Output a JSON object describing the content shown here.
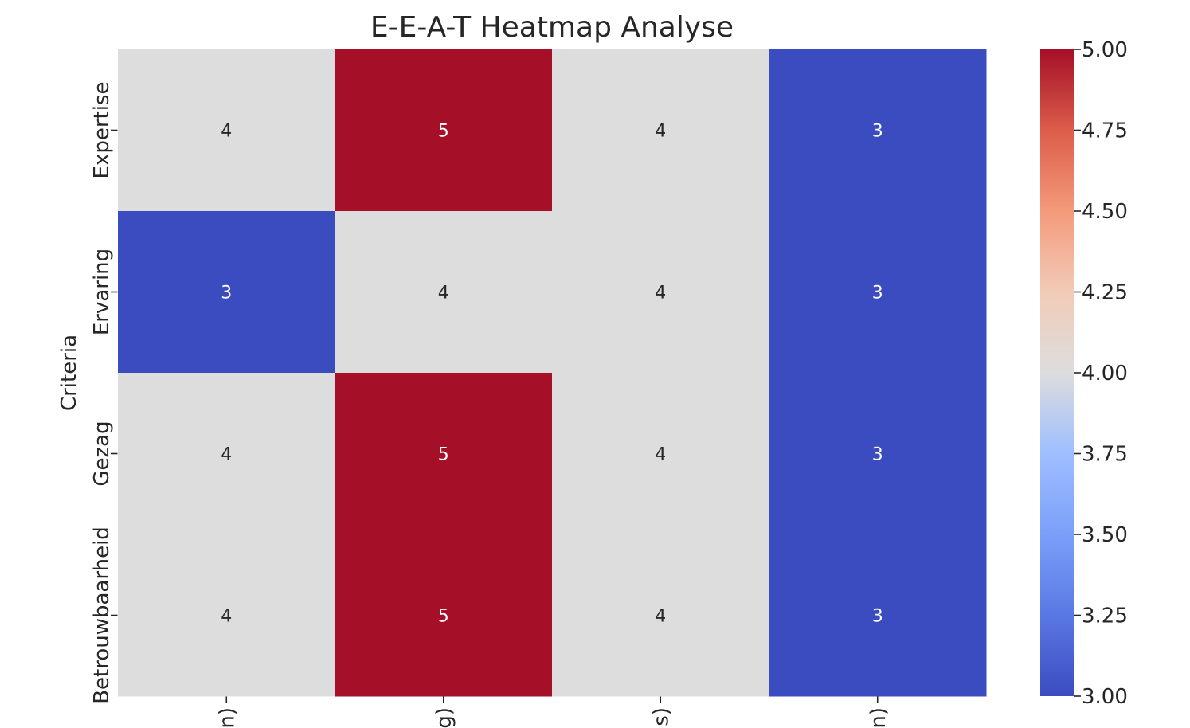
{
  "chart_data": {
    "type": "heatmap",
    "title": "E-E-A-T Heatmap Analyse",
    "ylabel": "Criteria",
    "xlabel": "",
    "rows": [
      "Expertise",
      "Ervaring",
      "Gezag",
      "Betrouwbaarheid"
    ],
    "columns": [
      "n)",
      "g)",
      "s)",
      "n)"
    ],
    "values": [
      [
        4,
        5,
        4,
        3
      ],
      [
        3,
        4,
        4,
        3
      ],
      [
        4,
        5,
        4,
        3
      ],
      [
        4,
        5,
        4,
        3
      ]
    ],
    "colormap": "coolwarm",
    "vmin": 3.0,
    "vmax": 5.0,
    "colorbar_ticks": [
      "3.00",
      "3.25",
      "3.50",
      "3.75",
      "4.00",
      "4.25",
      "4.50",
      "4.75",
      "5.00"
    ],
    "annotations": true,
    "colors": {
      "low": "#3b4cc0",
      "mid": "#dddddd",
      "high": "#a50f27"
    }
  }
}
